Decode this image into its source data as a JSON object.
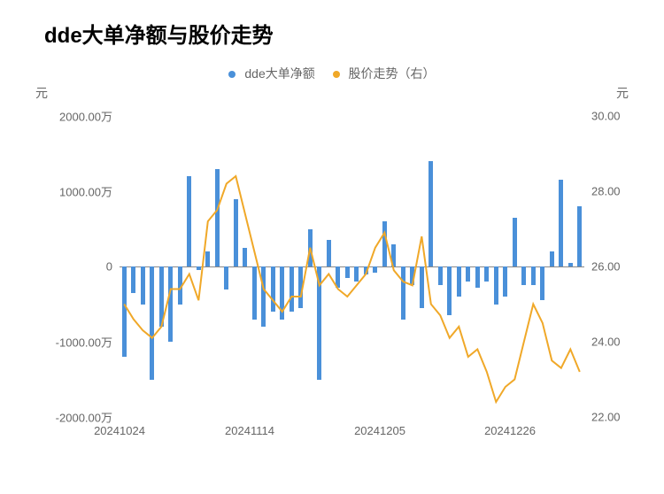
{
  "title": "dde大单净额与股价走势",
  "legend": {
    "series1": {
      "label": "dde大单净额",
      "color": "#4a90d9"
    },
    "series2": {
      "label": "股价走势（右）",
      "color": "#f0a828"
    }
  },
  "axis_label_left": "元",
  "axis_label_right": "元",
  "y_left": {
    "min": -2000,
    "max": 2000,
    "step": 1000,
    "ticks": [
      "2000.00万",
      "1000.00万",
      "0",
      "-1000.00万",
      "-2000.00万"
    ],
    "tick_values": [
      2000,
      1000,
      0,
      -1000,
      -2000
    ]
  },
  "y_right": {
    "min": 22,
    "max": 30,
    "step": 2,
    "ticks": [
      "30.00",
      "28.00",
      "26.00",
      "24.00",
      "22.00"
    ],
    "tick_values": [
      30,
      28,
      26,
      24,
      22
    ]
  },
  "x_ticks": {
    "labels": [
      "20241024",
      "20241114",
      "20241205",
      "20241226"
    ],
    "positions": [
      0,
      0.28,
      0.56,
      0.84
    ]
  },
  "bar_color": "#4a90d9",
  "line_color": "#f0a828",
  "line_width": 2,
  "bar_width_ratio": 0.45,
  "background_color": "#ffffff",
  "zero_line_color": "#888888",
  "title_fontsize": 24,
  "label_fontsize": 14,
  "tick_fontsize": 13,
  "bars": [
    -1200,
    -350,
    -500,
    -1500,
    -800,
    -1000,
    -500,
    1200,
    -50,
    200,
    1300,
    -300,
    900,
    250,
    -700,
    -800,
    -600,
    -700,
    -600,
    -550,
    500,
    -1500,
    350,
    -280,
    -150,
    -200,
    -100,
    -80,
    600,
    300,
    -700,
    -250,
    -550,
    1400,
    -250,
    -650,
    -400,
    -200,
    -280,
    -200,
    -500,
    -400,
    650,
    -250,
    -250,
    -450,
    200,
    1150,
    50,
    800
  ],
  "line": [
    25.0,
    24.6,
    24.3,
    24.1,
    24.4,
    25.4,
    25.4,
    25.8,
    25.1,
    27.2,
    27.5,
    28.2,
    28.4,
    27.4,
    26.4,
    25.4,
    25.1,
    24.8,
    25.2,
    25.2,
    26.5,
    25.5,
    25.8,
    25.4,
    25.2,
    25.5,
    25.8,
    26.5,
    26.9,
    25.9,
    25.6,
    25.5,
    26.8,
    25.0,
    24.7,
    24.1,
    24.4,
    23.6,
    23.8,
    23.2,
    22.4,
    22.8,
    23.0,
    24.0,
    25.0,
    24.5,
    23.5,
    23.3,
    23.8,
    23.2
  ]
}
